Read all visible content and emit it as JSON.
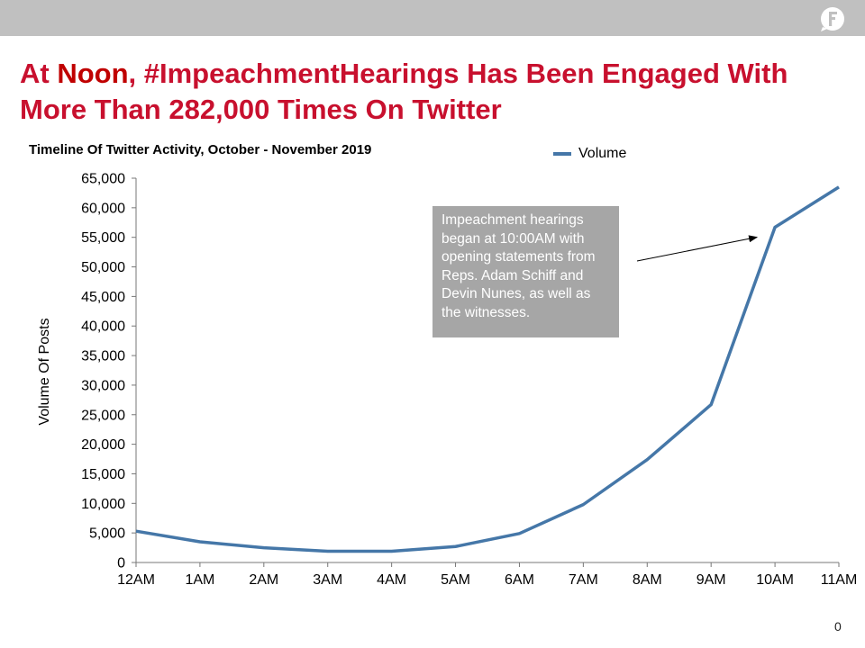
{
  "headline": {
    "part1": "At ",
    "highlight": "Noon",
    "part2": ", #ImpeachmentHearings Has Been Engaged With More Than 282,000 Times On Twitter"
  },
  "logo": {
    "icon": "brand-logo-icon",
    "color": "#ffffff"
  },
  "colors": {
    "accent": "#c8102e",
    "series": "#4577a8",
    "callout_bg": "#a6a6a6",
    "top_bar": "#c0c0c0"
  },
  "page_number": "0",
  "chart_data": {
    "type": "line",
    "title": "Timeline Of Twitter Activity, October - November 2019",
    "xlabel": "",
    "ylabel": "Volume Of Posts",
    "categories": [
      "12AM",
      "1AM",
      "2AM",
      "3AM",
      "4AM",
      "5AM",
      "6AM",
      "7AM",
      "8AM",
      "9AM",
      "10AM",
      "11AM"
    ],
    "series": [
      {
        "name": "Volume",
        "values": [
          5300,
          3500,
          2500,
          1900,
          1900,
          2700,
          4900,
          9800,
          17400,
          26700,
          56700,
          63500
        ]
      }
    ],
    "ylim": [
      0,
      65000
    ],
    "yticks": [
      "0",
      "5,000",
      "10,000",
      "15,000",
      "20,000",
      "25,000",
      "30,000",
      "35,000",
      "40,000",
      "45,000",
      "50,000",
      "55,000",
      "60,000",
      "65,000"
    ],
    "legend": "top-right",
    "grid": false,
    "annotations": [
      {
        "text": "Impeachment hearings began at 10:00AM with opening statements from Reps. Adam Schiff and Devin Nunes, as well as the witnesses.",
        "target_category": "10AM"
      }
    ]
  }
}
